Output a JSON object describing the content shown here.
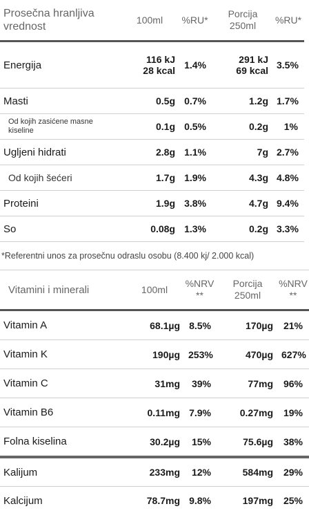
{
  "nutrition": {
    "header": {
      "label": "Prosečna hranljiva vrednost",
      "col_100ml": "100ml",
      "col_ru": "%RU*",
      "col_portion": "Porcija 250ml",
      "col_ru2": "%RU*"
    },
    "rows": [
      {
        "label": "Energija",
        "v1": "116 kJ",
        "v1b": "28 kcal",
        "p1": "1.4%",
        "v2": "291 kJ",
        "v2b": "69 kcal",
        "p2": "3.5%"
      },
      {
        "label": "Masti",
        "v1": "0.5g",
        "p1": "0.7%",
        "v2": "1.2g",
        "p2": "1.7%"
      },
      {
        "label": "Od kojih zasićene masne kiseline",
        "v1": "0.1g",
        "p1": "0.5%",
        "v2": "0.2g",
        "p2": "1%"
      },
      {
        "label": "Ugljeni hidrati",
        "v1": "2.8g",
        "p1": "1.1%",
        "v2": "7g",
        "p2": "2.7%"
      },
      {
        "label": "Od kojih šećeri",
        "v1": "1.7g",
        "p1": "1.9%",
        "v2": "4.3g",
        "p2": "4.8%"
      },
      {
        "label": "Proteini",
        "v1": "1.9g",
        "p1": "3.8%",
        "v2": "4.7g",
        "p2": "9.4%"
      },
      {
        "label": "So",
        "v1": "0.08g",
        "p1": "1.3%",
        "v2": "0.2g",
        "p2": "3.3%"
      }
    ],
    "footnote": "*Referentni unos za prosečnu odraslu osobu (8.400 kj/ 2.000 kcal)"
  },
  "vitamins": {
    "header": {
      "label": "Vitamini i minerali",
      "col_100ml": "100ml",
      "col_nrv": "%NRV **",
      "col_portion": "Porcija 250ml",
      "col_nrv2": "%NRV **"
    },
    "rows": [
      {
        "label": "Vitamin A",
        "v1": "68.1µg",
        "p1": "8.5%",
        "v2": "170µg",
        "p2": "21%"
      },
      {
        "label": "Vitamin K",
        "v1": "190µg",
        "p1": "253%",
        "v2": "470µg",
        "p2": "627%"
      },
      {
        "label": "Vitamin C",
        "v1": "31mg",
        "p1": "39%",
        "v2": "77mg",
        "p2": "96%"
      },
      {
        "label": "Vitamin B6",
        "v1": "0.11mg",
        "p1": "7.9%",
        "v2": "0.27mg",
        "p2": "19%"
      },
      {
        "label": "Folna kiselina",
        "v1": "30.2µg",
        "p1": "15%",
        "v2": "75.6µg",
        "p2": "38%"
      },
      {
        "label": "Kalijum",
        "v1": "233mg",
        "p1": "12%",
        "v2": "584mg",
        "p2": "29%"
      },
      {
        "label": "Kalcijum",
        "v1": "78.7mg",
        "p1": "9.8%",
        "v2": "197mg",
        "p2": "25%"
      }
    ]
  }
}
